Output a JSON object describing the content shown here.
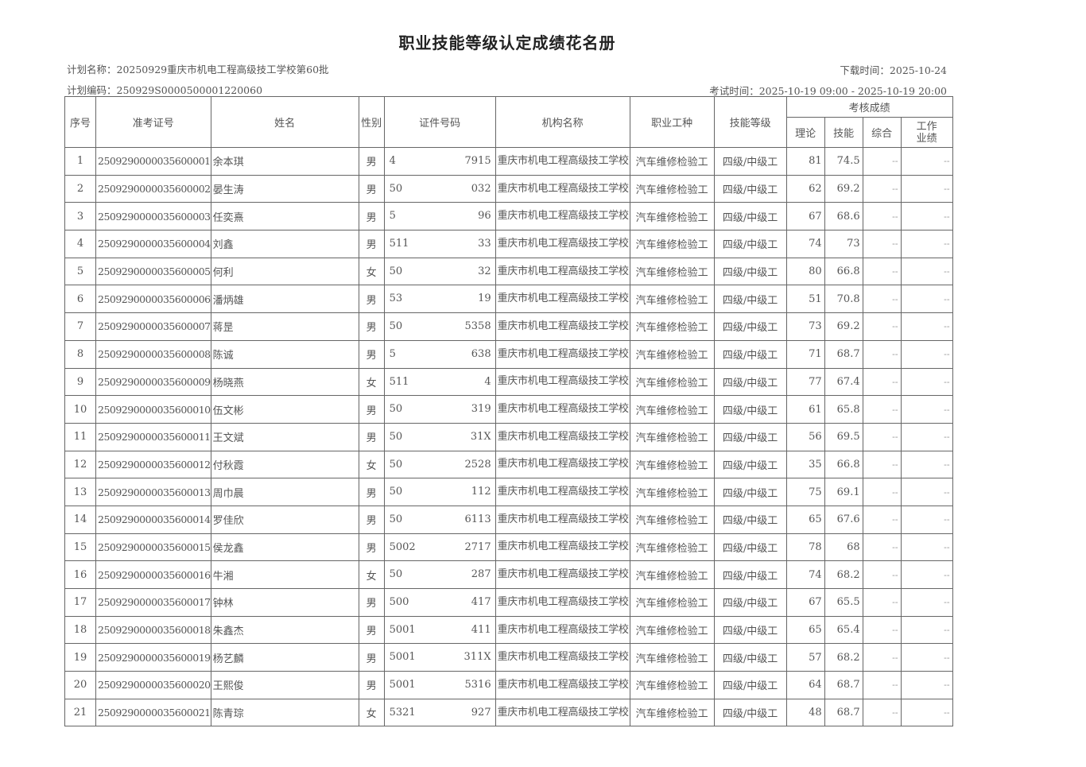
{
  "title": "职业技能等级认定成绩花名册",
  "plan_name": "计划名称：20250929重庆市机电工程高级技工学校第60批",
  "plan_code": "计划编码：250929S0000500001220060",
  "download_time": "下载时间：2025-10-24",
  "exam_time": "考试时间：2025-10-19 09:00 - 2025-10-19 20:00",
  "headers": {
    "seq": "序号",
    "ticket": "准考证号",
    "name": "姓名",
    "gender": "性别",
    "id": "证件号码",
    "org": "机构名称",
    "job": "职业工种",
    "level": "技能等级",
    "scores": "考核成绩",
    "theory": "理论",
    "skill": "技能",
    "overall": "综合",
    "work": "工作业绩"
  },
  "common": {
    "org": "重庆市机电工程高级技工学校",
    "job": "汽车维修检验工",
    "level": "四级/中级工",
    "dash": "--"
  },
  "rows": [
    {
      "seq": "1",
      "ticket": "2509290000035600001",
      "name": "余本琪",
      "gender": "男",
      "id_prefix": "4",
      "id_suffix": "7915",
      "theory": "81",
      "skill": "74.5"
    },
    {
      "seq": "2",
      "ticket": "2509290000035600002",
      "name": "晏生涛",
      "gender": "男",
      "id_prefix": "50",
      "id_suffix": "032",
      "theory": "62",
      "skill": "69.2"
    },
    {
      "seq": "3",
      "ticket": "2509290000035600003",
      "name": "任奕熹",
      "gender": "男",
      "id_prefix": "5",
      "id_suffix": "96",
      "theory": "67",
      "skill": "68.6"
    },
    {
      "seq": "4",
      "ticket": "2509290000035600004",
      "name": "刘鑫",
      "gender": "男",
      "id_prefix": "511",
      "id_suffix": "33",
      "theory": "74",
      "skill": "73"
    },
    {
      "seq": "5",
      "ticket": "2509290000035600005",
      "name": "何利",
      "gender": "女",
      "id_prefix": "50",
      "id_suffix": "32",
      "theory": "80",
      "skill": "66.8"
    },
    {
      "seq": "6",
      "ticket": "2509290000035600006",
      "name": "潘炳雄",
      "gender": "男",
      "id_prefix": "53",
      "id_suffix": "19",
      "theory": "51",
      "skill": "70.8"
    },
    {
      "seq": "7",
      "ticket": "2509290000035600007",
      "name": "蒋昰",
      "gender": "男",
      "id_prefix": "50",
      "id_suffix": "5358",
      "theory": "73",
      "skill": "69.2"
    },
    {
      "seq": "8",
      "ticket": "2509290000035600008",
      "name": "陈诚",
      "gender": "男",
      "id_prefix": "5",
      "id_suffix": "638",
      "theory": "71",
      "skill": "68.7"
    },
    {
      "seq": "9",
      "ticket": "2509290000035600009",
      "name": "杨晓燕",
      "gender": "女",
      "id_prefix": "511",
      "id_suffix": "4",
      "theory": "77",
      "skill": "67.4"
    },
    {
      "seq": "10",
      "ticket": "2509290000035600010",
      "name": "伍文彬",
      "gender": "男",
      "id_prefix": "50",
      "id_suffix": "319",
      "theory": "61",
      "skill": "65.8"
    },
    {
      "seq": "11",
      "ticket": "2509290000035600011",
      "name": "王文斌",
      "gender": "男",
      "id_prefix": "50",
      "id_suffix": "31X",
      "theory": "56",
      "skill": "69.5"
    },
    {
      "seq": "12",
      "ticket": "2509290000035600012",
      "name": "付秋霞",
      "gender": "女",
      "id_prefix": "50",
      "id_suffix": "2528",
      "theory": "35",
      "skill": "66.8"
    },
    {
      "seq": "13",
      "ticket": "2509290000035600013",
      "name": "周巾晨",
      "gender": "男",
      "id_prefix": "50",
      "id_suffix": "112",
      "theory": "75",
      "skill": "69.1"
    },
    {
      "seq": "14",
      "ticket": "2509290000035600014",
      "name": "罗佳欣",
      "gender": "男",
      "id_prefix": "50",
      "id_suffix": "6113",
      "theory": "65",
      "skill": "67.6"
    },
    {
      "seq": "15",
      "ticket": "2509290000035600015",
      "name": "侯龙鑫",
      "gender": "男",
      "id_prefix": "5002",
      "id_suffix": "2717",
      "theory": "78",
      "skill": "68"
    },
    {
      "seq": "16",
      "ticket": "2509290000035600016",
      "name": "牛湘",
      "gender": "女",
      "id_prefix": "50",
      "id_suffix": "287",
      "theory": "74",
      "skill": "68.2"
    },
    {
      "seq": "17",
      "ticket": "2509290000035600017",
      "name": "钟林",
      "gender": "男",
      "id_prefix": "500",
      "id_suffix": "417",
      "theory": "67",
      "skill": "65.5"
    },
    {
      "seq": "18",
      "ticket": "2509290000035600018",
      "name": "朱鑫杰",
      "gender": "男",
      "id_prefix": "5001",
      "id_suffix": "411",
      "theory": "65",
      "skill": "65.4"
    },
    {
      "seq": "19",
      "ticket": "2509290000035600019",
      "name": "杨艺麟",
      "gender": "男",
      "id_prefix": "5001",
      "id_suffix": "311X",
      "theory": "57",
      "skill": "68.2"
    },
    {
      "seq": "20",
      "ticket": "2509290000035600020",
      "name": "王熙俊",
      "gender": "男",
      "id_prefix": "5001",
      "id_suffix": "5316",
      "theory": "64",
      "skill": "68.7"
    },
    {
      "seq": "21",
      "ticket": "2509290000035600021",
      "name": "陈青琮",
      "gender": "女",
      "id_prefix": "5321",
      "id_suffix": "927",
      "theory": "48",
      "skill": "68.7"
    }
  ]
}
